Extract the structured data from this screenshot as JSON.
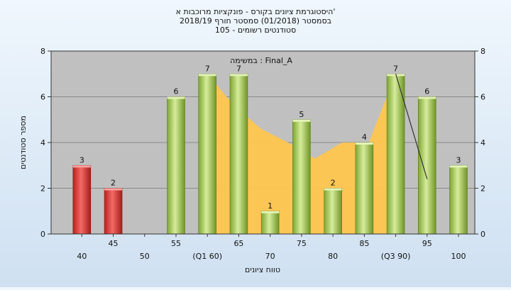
{
  "chart_data": {
    "type": "bar",
    "title_lines": [
      "היסטוגרמת ציונים בקורס - פונקציות מרוכבות א'",
      "בסמסטר  (01/2018)  סמסטר חורף 2018/19",
      "סטודנטים רשומים - 105"
    ],
    "plot_label": "במשימה : Final_A",
    "xlabel": "טווח ציונים",
    "ylabel": "מספר סטודנטים",
    "ylim": [
      0,
      8
    ],
    "y_ticks": [
      0,
      2,
      4,
      6,
      8
    ],
    "grid": "horizontal",
    "categories": [
      "40",
      "45",
      "50",
      "55",
      "(Q1 60)",
      "65",
      "70",
      "75",
      "80",
      "85",
      "(Q3 90)",
      "95",
      "100"
    ],
    "values": [
      3,
      2,
      0,
      6,
      7,
      7,
      1,
      5,
      2,
      4,
      7,
      6,
      3
    ],
    "bar_colors": [
      "#d9302f",
      "#d9302f",
      "#d9302f",
      "#8fba3e",
      "#8fba3e",
      "#8fba3e",
      "#8fba3e",
      "#8fba3e",
      "#8fba3e",
      "#8fba3e",
      "#8fba3e",
      "#8fba3e",
      "#8fba3e"
    ],
    "area": {
      "x_from": "(Q1 60)",
      "x_to": "(Q3 90)",
      "values": [
        7,
        5.6,
        4.6,
        4,
        3.3,
        4,
        4,
        7
      ],
      "color": "#ffc64f"
    },
    "line": {
      "points": [
        [
          "(Q3 90)",
          7
        ],
        [
          "95",
          2.4
        ]
      ],
      "color": "#333333"
    },
    "colors": {
      "plot_bg": "#c0c0c0",
      "grid": "#8a8a8a"
    }
  }
}
